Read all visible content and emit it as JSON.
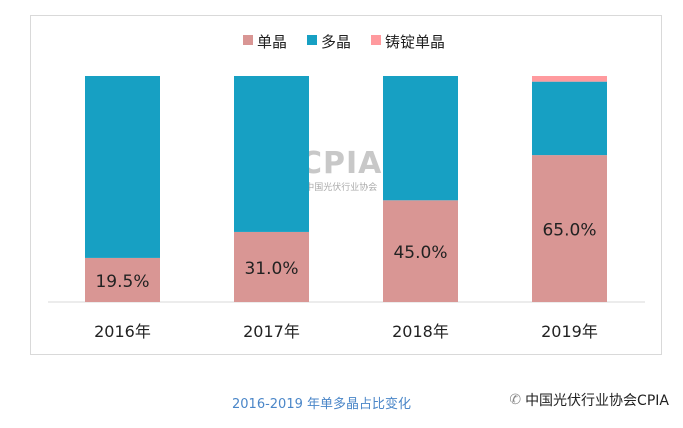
{
  "chart_data": {
    "type": "bar",
    "stacked": true,
    "categories": [
      "2016年",
      "2017年",
      "2018年",
      "2019年"
    ],
    "series": [
      {
        "name": "单晶",
        "values": [
          19.5,
          31.0,
          45.0,
          65.0
        ],
        "color": "#d99694",
        "labels": [
          "19.5%",
          "31.0%",
          "45.0%",
          "65.0%"
        ]
      },
      {
        "name": "多晶",
        "values": [
          80.5,
          69.0,
          55.0,
          32.5
        ],
        "color": "#17a0c3"
      },
      {
        "name": "铸锭单晶",
        "values": [
          0,
          0,
          0,
          2.5
        ],
        "color": "#ff9a9e"
      }
    ],
    "ylim": [
      0,
      100
    ],
    "grid": false,
    "legend": "top"
  },
  "caption": "2016-2019 年单多晶占比变化",
  "watermark": {
    "logo": "CPIA",
    "name": "中国光伏行业协会",
    "en": "China Photovoltaic Industry Association"
  },
  "brand": "中国光伏行业协会CPIA"
}
